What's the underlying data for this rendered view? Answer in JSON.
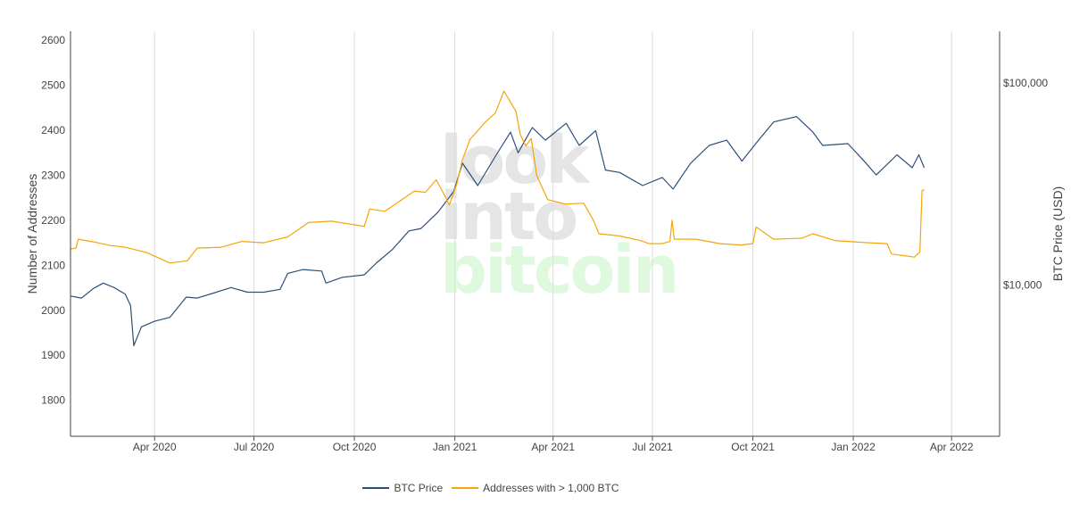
{
  "chart_data": {
    "type": "line",
    "watermark": [
      "look",
      "into",
      "bitcoin"
    ],
    "left_axis": {
      "label": "Number of Addresses",
      "range": [
        1720,
        2620
      ],
      "ticks": [
        1800,
        1900,
        2000,
        2100,
        2200,
        2300,
        2400,
        2500,
        2600
      ]
    },
    "right_axis": {
      "label": "BTC Price (USD)",
      "scale": "log",
      "range": [
        1780,
        180000
      ],
      "ticks": [
        {
          "value": 10000,
          "label": "$10,000"
        },
        {
          "value": 100000,
          "label": "$100,000"
        }
      ]
    },
    "x_axis": {
      "range": [
        "2020-01-15",
        "2022-05-15"
      ],
      "ticks": [
        {
          "date": "2020-04-01",
          "label": "Apr 2020"
        },
        {
          "date": "2020-07-01",
          "label": "Jul 2020"
        },
        {
          "date": "2020-10-01",
          "label": "Oct 2020"
        },
        {
          "date": "2021-01-01",
          "label": "Jan 2021"
        },
        {
          "date": "2021-04-01",
          "label": "Apr 2021"
        },
        {
          "date": "2021-07-01",
          "label": "Jul 2021"
        },
        {
          "date": "2021-10-01",
          "label": "Oct 2021"
        },
        {
          "date": "2022-01-01",
          "label": "Jan 2022"
        },
        {
          "date": "2022-04-01",
          "label": "Apr 2022"
        }
      ]
    },
    "grid": "vertical",
    "legend_position": "bottom-center",
    "series": [
      {
        "name": "BTC Price",
        "axis": "right",
        "color": "#2c4f78",
        "points": [
          [
            "2020-01-15",
            8800
          ],
          [
            "2020-01-25",
            8600
          ],
          [
            "2020-02-05",
            9600
          ],
          [
            "2020-02-14",
            10200
          ],
          [
            "2020-02-24",
            9700
          ],
          [
            "2020-03-05",
            9000
          ],
          [
            "2020-03-10",
            7900
          ],
          [
            "2020-03-13",
            5000
          ],
          [
            "2020-03-20",
            6200
          ],
          [
            "2020-04-01",
            6600
          ],
          [
            "2020-04-15",
            6900
          ],
          [
            "2020-04-30",
            8700
          ],
          [
            "2020-05-10",
            8600
          ],
          [
            "2020-05-25",
            9100
          ],
          [
            "2020-06-10",
            9700
          ],
          [
            "2020-06-25",
            9200
          ],
          [
            "2020-07-10",
            9200
          ],
          [
            "2020-07-25",
            9500
          ],
          [
            "2020-08-01",
            11400
          ],
          [
            "2020-08-15",
            11900
          ],
          [
            "2020-09-01",
            11700
          ],
          [
            "2020-09-05",
            10200
          ],
          [
            "2020-09-20",
            10900
          ],
          [
            "2020-10-10",
            11200
          ],
          [
            "2020-10-21",
            12800
          ],
          [
            "2020-11-05",
            15000
          ],
          [
            "2020-11-20",
            18500
          ],
          [
            "2020-12-01",
            19000
          ],
          [
            "2020-12-17",
            23000
          ],
          [
            "2020-12-31",
            29000
          ],
          [
            "2021-01-08",
            40000
          ],
          [
            "2021-01-22",
            31000
          ],
          [
            "2021-02-08",
            44000
          ],
          [
            "2021-02-21",
            57000
          ],
          [
            "2021-02-28",
            45000
          ],
          [
            "2021-03-13",
            60000
          ],
          [
            "2021-03-25",
            52000
          ],
          [
            "2021-04-13",
            63000
          ],
          [
            "2021-04-25",
            49000
          ],
          [
            "2021-05-10",
            58000
          ],
          [
            "2021-05-19",
            37000
          ],
          [
            "2021-06-01",
            36000
          ],
          [
            "2021-06-22",
            31000
          ],
          [
            "2021-07-10",
            34000
          ],
          [
            "2021-07-20",
            29800
          ],
          [
            "2021-08-05",
            40000
          ],
          [
            "2021-08-22",
            49000
          ],
          [
            "2021-09-07",
            52000
          ],
          [
            "2021-09-21",
            41000
          ],
          [
            "2021-10-05",
            51000
          ],
          [
            "2021-10-20",
            64000
          ],
          [
            "2021-11-10",
            68000
          ],
          [
            "2021-11-25",
            57000
          ],
          [
            "2021-12-04",
            49000
          ],
          [
            "2021-12-27",
            50000
          ],
          [
            "2022-01-10",
            41500
          ],
          [
            "2022-01-22",
            35000
          ],
          [
            "2022-02-10",
            44000
          ],
          [
            "2022-02-24",
            38000
          ],
          [
            "2022-03-02",
            44000
          ],
          [
            "2022-03-07",
            38000
          ]
        ]
      },
      {
        "name": "Addresses with > 1,000 BTC",
        "axis": "left",
        "color": "#f5a50a",
        "points": [
          [
            "2020-01-15",
            2136
          ],
          [
            "2020-01-20",
            2138
          ],
          [
            "2020-01-22",
            2158
          ],
          [
            "2020-02-05",
            2152
          ],
          [
            "2020-02-20",
            2144
          ],
          [
            "2020-03-05",
            2140
          ],
          [
            "2020-03-25",
            2128
          ],
          [
            "2020-04-15",
            2105
          ],
          [
            "2020-05-01",
            2110
          ],
          [
            "2020-05-10",
            2138
          ],
          [
            "2020-06-01",
            2140
          ],
          [
            "2020-06-20",
            2153
          ],
          [
            "2020-07-10",
            2150
          ],
          [
            "2020-08-01",
            2163
          ],
          [
            "2020-08-20",
            2195
          ],
          [
            "2020-09-10",
            2198
          ],
          [
            "2020-10-01",
            2190
          ],
          [
            "2020-10-10",
            2186
          ],
          [
            "2020-10-15",
            2225
          ],
          [
            "2020-10-29",
            2220
          ],
          [
            "2020-11-10",
            2240
          ],
          [
            "2020-11-25",
            2265
          ],
          [
            "2020-12-05",
            2262
          ],
          [
            "2020-12-15",
            2290
          ],
          [
            "2020-12-22",
            2258
          ],
          [
            "2020-12-27",
            2234
          ],
          [
            "2021-01-03",
            2282
          ],
          [
            "2021-01-08",
            2335
          ],
          [
            "2021-01-15",
            2380
          ],
          [
            "2021-01-29",
            2418
          ],
          [
            "2021-02-07",
            2438
          ],
          [
            "2021-02-15",
            2487
          ],
          [
            "2021-02-26",
            2442
          ],
          [
            "2021-03-02",
            2390
          ],
          [
            "2021-03-07",
            2365
          ],
          [
            "2021-03-12",
            2382
          ],
          [
            "2021-03-17",
            2300
          ],
          [
            "2021-03-27",
            2246
          ],
          [
            "2021-04-12",
            2236
          ],
          [
            "2021-04-29",
            2238
          ],
          [
            "2021-05-08",
            2200
          ],
          [
            "2021-05-13",
            2170
          ],
          [
            "2021-06-01",
            2165
          ],
          [
            "2021-06-20",
            2155
          ],
          [
            "2021-06-28",
            2148
          ],
          [
            "2021-07-10",
            2148
          ],
          [
            "2021-07-17",
            2153
          ],
          [
            "2021-07-19",
            2200
          ],
          [
            "2021-07-21",
            2158
          ],
          [
            "2021-08-10",
            2158
          ],
          [
            "2021-09-01",
            2148
          ],
          [
            "2021-09-20",
            2145
          ],
          [
            "2021-10-01",
            2148
          ],
          [
            "2021-10-04",
            2185
          ],
          [
            "2021-10-20",
            2158
          ],
          [
            "2021-11-15",
            2160
          ],
          [
            "2021-11-25",
            2170
          ],
          [
            "2021-12-15",
            2155
          ],
          [
            "2022-01-15",
            2150
          ],
          [
            "2022-02-01",
            2148
          ],
          [
            "2022-02-05",
            2125
          ],
          [
            "2022-02-26",
            2118
          ],
          [
            "2022-03-03",
            2130
          ],
          [
            "2022-03-05",
            2266
          ],
          [
            "2022-03-07",
            2268
          ]
        ]
      }
    ]
  }
}
